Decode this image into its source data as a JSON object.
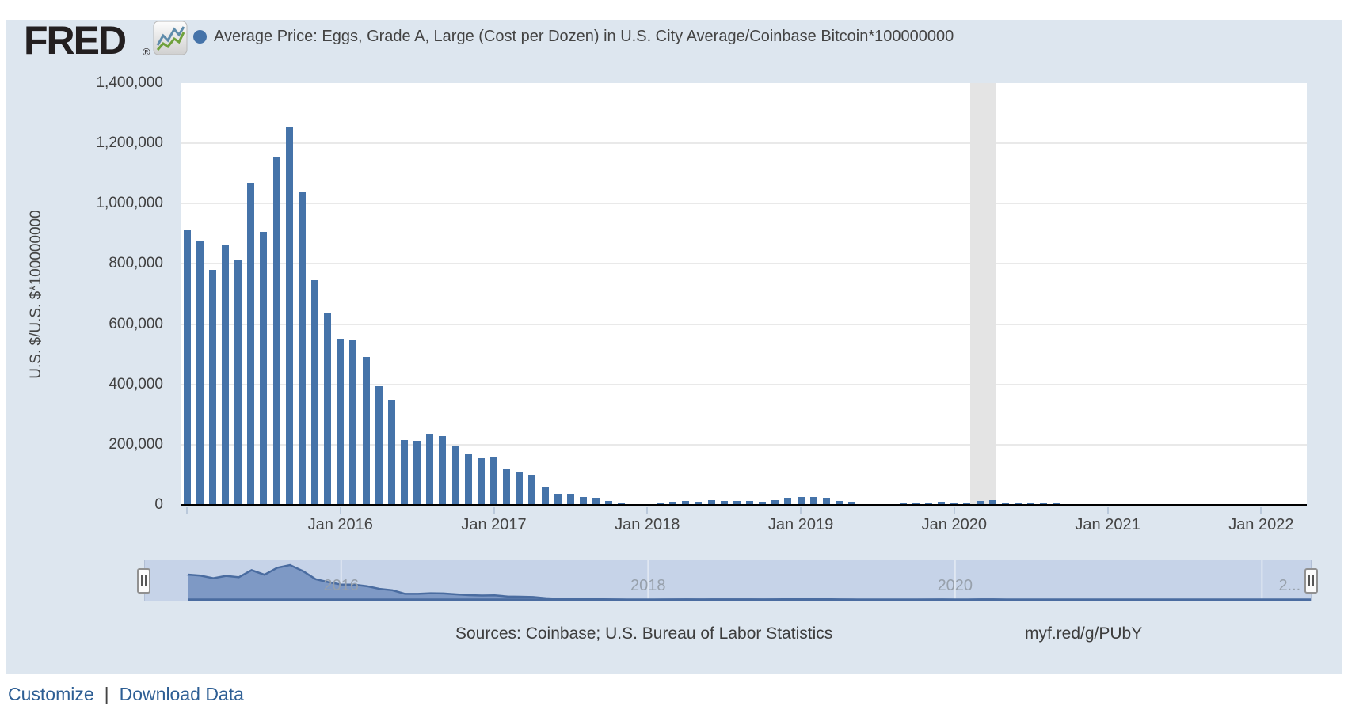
{
  "header": {
    "logo_text": "FRED",
    "logo_registered": "®",
    "legend_dot_color": "#4573a9",
    "series_title": "Average Price: Eggs, Grade A, Large (Cost per Dozen) in U.S. City Average/Coinbase Bitcoin*100000000"
  },
  "chart_data": {
    "type": "bar",
    "title": "Average Price: Eggs, Grade A, Large (Cost per Dozen) in U.S. City Average/Coinbase Bitcoin*100000000",
    "ylabel": "U.S. $/U.S. $*100000000",
    "xlabel": "",
    "ylim": [
      0,
      1400000
    ],
    "grid": true,
    "legend_position": "top",
    "bar_color": "#4573a9",
    "y_tick_step": 200000,
    "y_tick_labels": [
      "0",
      "200,000",
      "400,000",
      "600,000",
      "800,000",
      "1,000,000",
      "1,200,000",
      "1,400,000"
    ],
    "x_ticks": [
      {
        "month": "2015-01",
        "label": ""
      },
      {
        "month": "2016-01",
        "label": "Jan 2016"
      },
      {
        "month": "2017-01",
        "label": "Jan 2017"
      },
      {
        "month": "2018-01",
        "label": "Jan 2018"
      },
      {
        "month": "2019-01",
        "label": "Jan 2019"
      },
      {
        "month": "2020-01",
        "label": "Jan 2020"
      },
      {
        "month": "2021-01",
        "label": "Jan 2021"
      },
      {
        "month": "2022-01",
        "label": "Jan 2022"
      }
    ],
    "start_month": "2015-01",
    "end_month": "2022-02",
    "frequency": "monthly",
    "recession_band": {
      "start": "2020-02",
      "end": "2020-04"
    },
    "values": [
      914000,
      877000,
      783000,
      867000,
      817000,
      1072000,
      909000,
      1159000,
      1256000,
      1043000,
      749000,
      638000,
      554000,
      549000,
      494000,
      397000,
      349000,
      218000,
      216000,
      239000,
      230000,
      200000,
      171000,
      158000,
      163000,
      123000,
      113000,
      102000,
      60000,
      39000,
      39000,
      28000,
      25000,
      16000,
      11000,
      0,
      4000,
      10000,
      13000,
      16000,
      13000,
      18000,
      16000,
      16000,
      16000,
      13000,
      18000,
      26000,
      29000,
      29000,
      27000,
      15000,
      12000,
      0,
      0,
      0,
      8000,
      8000,
      10000,
      13000,
      8000,
      9000,
      16000,
      18000,
      9000,
      9000,
      8000,
      9000,
      8000,
      6000,
      4000,
      3000,
      3000,
      2500,
      2500,
      2000,
      2500,
      3000,
      3500,
      3000,
      3000,
      2500,
      2500,
      2500,
      3000,
      2500
    ]
  },
  "slider": {
    "labels": [
      {
        "text": "2016",
        "month": "2016-01",
        "dx": 0
      },
      {
        "text": "2018",
        "month": "2018-01",
        "dx": 0
      },
      {
        "text": "2020",
        "month": "2020-01",
        "dx": 0
      },
      {
        "text": "2...",
        "month": "2022-01",
        "dx": 35
      }
    ]
  },
  "footer": {
    "sources": "Sources: Coinbase; U.S. Bureau of Labor Statistics",
    "permalink": "myf.red/g/PUbY"
  },
  "links": {
    "customize": "Customize",
    "separator": "|",
    "download": "Download Data"
  }
}
